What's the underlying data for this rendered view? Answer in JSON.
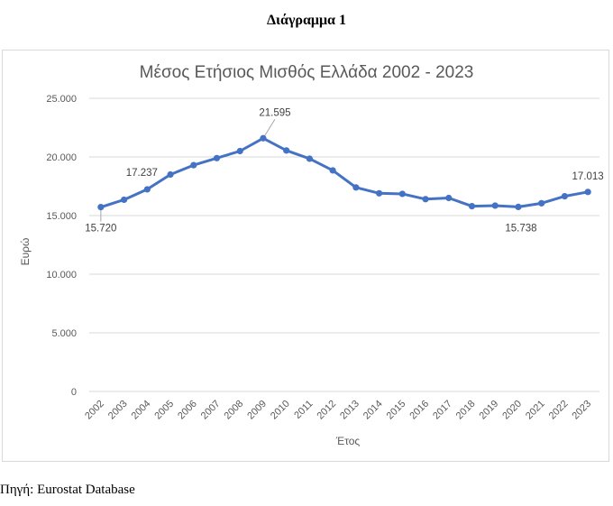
{
  "heading": "Διάγραμμα 1",
  "source": "Πηγή: Eurostat Database",
  "chart_data": {
    "type": "line",
    "title": "Μέσος Ετήσιος Μισθός Ελλάδα 2002 - 2023",
    "xlabel": "Έτος",
    "ylabel": "Ευρώ",
    "ylim": [
      0,
      25000
    ],
    "yticks": [
      "0",
      "5.000",
      "10.000",
      "15.000",
      "20.000",
      "25.000"
    ],
    "grid": true,
    "legend": "none",
    "color": "#4472c4",
    "categories": [
      "2002",
      "2003",
      "2004",
      "2005",
      "2006",
      "2007",
      "2008",
      "2009",
      "2010",
      "2011",
      "2012",
      "2013",
      "2014",
      "2015",
      "2016",
      "2017",
      "2018",
      "2019",
      "2020",
      "2021",
      "2022",
      "2023"
    ],
    "series": [
      {
        "values": [
          15720,
          16350,
          17237,
          18500,
          19300,
          19900,
          20500,
          21595,
          20550,
          19850,
          18850,
          17400,
          16900,
          16850,
          16400,
          16500,
          15800,
          15850,
          15738,
          16050,
          16650,
          17013
        ]
      }
    ],
    "data_labels": [
      {
        "category": "2002",
        "text": "15.720"
      },
      {
        "category": "2004",
        "text": "17.237"
      },
      {
        "category": "2009",
        "text": "21.595"
      },
      {
        "category": "2020",
        "text": "15.738"
      },
      {
        "category": "2023",
        "text": "17.013"
      }
    ]
  }
}
